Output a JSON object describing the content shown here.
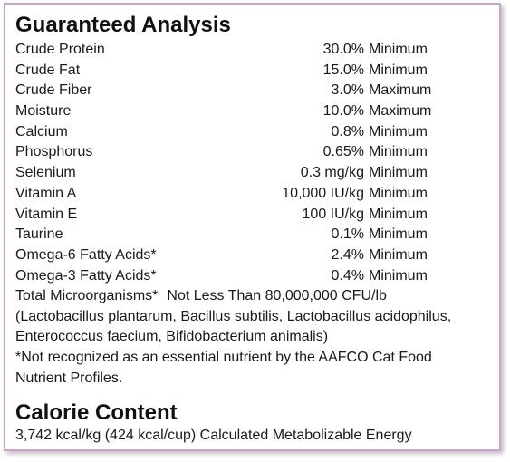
{
  "guaranteed_analysis": {
    "title": "Guaranteed Analysis",
    "rows": [
      {
        "name": "Crude Protein",
        "value": "30.0%",
        "qualifier": "Minimum"
      },
      {
        "name": "Crude Fat",
        "value": "15.0%",
        "qualifier": "Minimum"
      },
      {
        "name": "Crude Fiber",
        "value": "3.0%",
        "qualifier": "Maximum"
      },
      {
        "name": "Moisture",
        "value": "10.0%",
        "qualifier": "Maximum"
      },
      {
        "name": "Calcium",
        "value": "0.8%",
        "qualifier": "Minimum"
      },
      {
        "name": "Phosphorus",
        "value": "0.65%",
        "qualifier": "Minimum"
      },
      {
        "name": "Selenium",
        "value": "0.3 mg/kg",
        "qualifier": "Minimum"
      },
      {
        "name": "Vitamin A",
        "value": "10,000 IU/kg",
        "qualifier": "Minimum"
      },
      {
        "name": "Vitamin E",
        "value": "100 IU/kg",
        "qualifier": "Minimum"
      },
      {
        "name": "Taurine",
        "value": "0.1%",
        "qualifier": "Minimum"
      },
      {
        "name": "Omega-6 Fatty Acids*",
        "value": "2.4%",
        "qualifier": "Minimum"
      },
      {
        "name": "Omega-3 Fatty Acids*",
        "value": "0.4%",
        "qualifier": "Minimum"
      }
    ],
    "microorganisms": {
      "label": "Total Microorganisms*",
      "value": "Not Less Than 80,000,000 CFU/lb",
      "detail_line1": "(Lactobacillus plantarum, Bacillus subtilis, Lactobacillus acidophilus,",
      "detail_line2": "Enterococcus faecium, Bifidobacterium animalis)"
    },
    "footnote_line1": "*Not recognized as an essential nutrient by the AAFCO Cat Food",
    "footnote_line2": "Nutrient Profiles."
  },
  "calorie_content": {
    "title": "Calorie Content",
    "text": "3,742 kcal/kg (424 kcal/cup) Calculated Metabolizable Energy"
  }
}
